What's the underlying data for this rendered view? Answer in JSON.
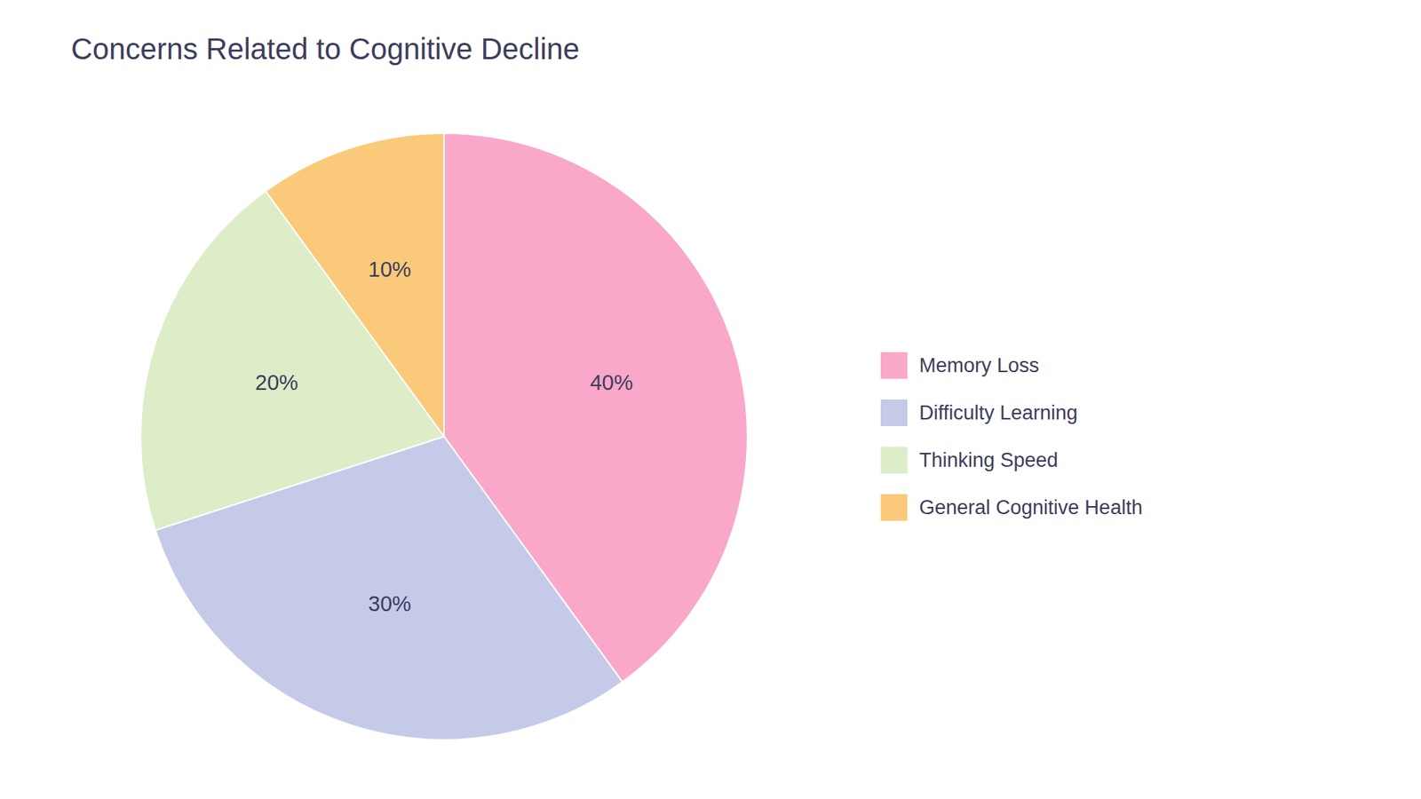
{
  "chart_data": {
    "type": "pie",
    "title": "Concerns Related to Cognitive Decline",
    "categories": [
      "Memory Loss",
      "Difficulty Learning",
      "Thinking Speed",
      "General Cognitive Health"
    ],
    "values": [
      40,
      30,
      20,
      10
    ],
    "value_labels": [
      "40%",
      "30%",
      "20%",
      "10%"
    ],
    "colors": [
      "#F9A8C9",
      "#C5CAE9",
      "#DCEDC8",
      "#FACA7A"
    ],
    "data_labels": true,
    "legend": "right"
  }
}
